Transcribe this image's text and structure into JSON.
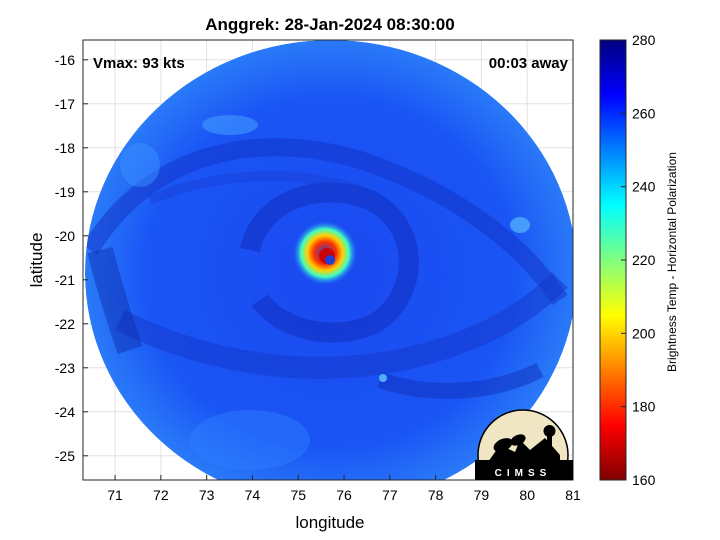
{
  "chart_data": {
    "type": "heatmap",
    "title": "Anggrek: 28-Jan-2024 08:30:00",
    "annotations": {
      "vmax": "Vmax: 93 kts",
      "time_offset": "00:03 away"
    },
    "xlabel": "longitude",
    "ylabel": "latitude",
    "xlim": [
      70.3,
      81.0
    ],
    "ylim": [
      -25.55,
      -15.55
    ],
    "xticks": [
      71,
      72,
      73,
      74,
      75,
      76,
      77,
      78,
      79,
      80,
      81
    ],
    "yticks": [
      -16,
      -17,
      -18,
      -19,
      -20,
      -21,
      -22,
      -23,
      -24,
      -25
    ],
    "grid": true,
    "storm_center": {
      "lon": 75.65,
      "lat": -20.55
    },
    "eyewall_min_temp_k": 165,
    "background_temp_k": 258,
    "colorbar": {
      "label": "Brightness Temp - Horizontal Polarization",
      "range": [
        160,
        280
      ],
      "ticks": [
        280,
        260,
        240,
        220,
        200,
        180,
        160
      ]
    },
    "logo_text": "CIMSS"
  }
}
